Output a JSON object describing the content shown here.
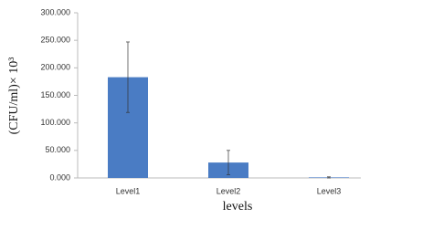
{
  "chart_data": {
    "type": "bar",
    "x_label": "levels",
    "y_label": "(CFU/ml)× 10³",
    "categories": [
      "Level1",
      "Level2",
      "Level3"
    ],
    "values": [
      183,
      28,
      1
    ],
    "errors": [
      64,
      22,
      1
    ],
    "color": "#4a7cc4",
    "ylim": [
      0,
      300
    ],
    "yticks": [
      {
        "value": 0,
        "label": "0.000"
      },
      {
        "value": 50,
        "label": "50.000"
      },
      {
        "value": 100,
        "label": "100.000"
      },
      {
        "value": 150,
        "label": "150.000"
      },
      {
        "value": 200,
        "label": "200.000"
      },
      {
        "value": 250,
        "label": "250.000"
      },
      {
        "value": 300,
        "label": "300.000"
      }
    ],
    "grid": false
  }
}
